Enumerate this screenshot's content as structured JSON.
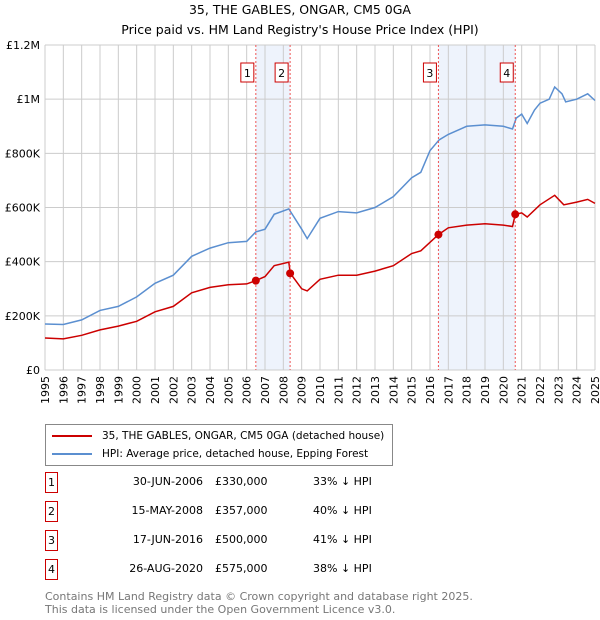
{
  "chart_data": {
    "type": "line",
    "title": "35, THE GABLES, ONGAR, CM5 0GA",
    "subtitle": "Price paid vs. HM Land Registry's House Price Index (HPI)",
    "xlim": [
      1995,
      2025
    ],
    "ylim": [
      0,
      1200000
    ],
    "x_ticks": [
      "1995",
      "1996",
      "1997",
      "1998",
      "1999",
      "2000",
      "2001",
      "2002",
      "2003",
      "2004",
      "2005",
      "2006",
      "2007",
      "2008",
      "2009",
      "2010",
      "2011",
      "2012",
      "2013",
      "2014",
      "2015",
      "2016",
      "2017",
      "2018",
      "2019",
      "2020",
      "2021",
      "2022",
      "2023",
      "2024",
      "2025"
    ],
    "y_ticks": [
      {
        "v": 0,
        "label": "£0"
      },
      {
        "v": 200000,
        "label": "£200K"
      },
      {
        "v": 400000,
        "label": "£400K"
      },
      {
        "v": 600000,
        "label": "£600K"
      },
      {
        "v": 800000,
        "label": "£800K"
      },
      {
        "v": 1000000,
        "label": "£1M"
      },
      {
        "v": 1200000,
        "label": "£1.2M"
      }
    ],
    "grid": true,
    "series": [
      {
        "name": "35, THE GABLES, ONGAR, CM5 0GA (detached house)",
        "color": "#cc0000",
        "x": [
          1995,
          1996,
          1997,
          1998,
          1999,
          2000,
          2001,
          2002,
          2003,
          2004,
          2005,
          2006,
          2006.5,
          2007,
          2007.5,
          2008.3,
          2008.38,
          2009,
          2009.3,
          2010,
          2011,
          2012,
          2013,
          2014,
          2015,
          2015.5,
          2016.46,
          2017,
          2018,
          2019,
          2020,
          2020.5,
          2020.65,
          2021,
          2021.3,
          2022,
          2022.8,
          2023.3,
          2024,
          2024.6,
          2025
        ],
        "y": [
          118000,
          115000,
          128000,
          148000,
          162000,
          180000,
          215000,
          235000,
          285000,
          305000,
          315000,
          318000,
          330000,
          345000,
          385000,
          398000,
          357000,
          300000,
          292000,
          335000,
          350000,
          350000,
          365000,
          385000,
          430000,
          440000,
          500000,
          525000,
          535000,
          540000,
          535000,
          530000,
          575000,
          580000,
          565000,
          610000,
          645000,
          610000,
          620000,
          630000,
          615000
        ]
      },
      {
        "name": "HPI: Average price, detached house, Epping Forest",
        "color": "#5b8fd0",
        "x": [
          1995,
          1996,
          1997,
          1998,
          1999,
          2000,
          2001,
          2002,
          2003,
          2004,
          2005,
          2006,
          2006.5,
          2007,
          2007.5,
          2008.3,
          2009,
          2009.3,
          2010,
          2011,
          2012,
          2013,
          2014,
          2015,
          2015.5,
          2016,
          2016.5,
          2017,
          2018,
          2019,
          2020,
          2020.5,
          2020.7,
          2021,
          2021.3,
          2021.7,
          2022,
          2022.5,
          2022.8,
          2023.2,
          2023.4,
          2024,
          2024.6,
          2025
        ],
        "y": [
          170000,
          168000,
          185000,
          220000,
          235000,
          270000,
          320000,
          350000,
          420000,
          450000,
          470000,
          475000,
          510000,
          520000,
          575000,
          595000,
          520000,
          485000,
          560000,
          585000,
          580000,
          600000,
          640000,
          710000,
          730000,
          810000,
          850000,
          870000,
          900000,
          905000,
          900000,
          890000,
          930000,
          945000,
          910000,
          960000,
          985000,
          1000000,
          1045000,
          1020000,
          990000,
          1000000,
          1020000,
          995000
        ]
      }
    ],
    "sales": [
      {
        "n": "1",
        "x": 2006.5,
        "price": 330000,
        "date": "30-JUN-2006",
        "price_label": "£330,000",
        "delta": "33% ↓ HPI"
      },
      {
        "n": "2",
        "x": 2008.37,
        "price": 357000,
        "date": "15-MAY-2008",
        "price_label": "£357,000",
        "delta": "40% ↓ HPI"
      },
      {
        "n": "3",
        "x": 2016.46,
        "price": 500000,
        "date": "17-JUN-2016",
        "price_label": "£500,000",
        "delta": "41% ↓ HPI"
      },
      {
        "n": "4",
        "x": 2020.65,
        "price": 575000,
        "date": "26-AUG-2020",
        "price_label": "£575,000",
        "delta": "38% ↓ HPI"
      }
    ],
    "shaded": [
      [
        2006.5,
        2008.37
      ],
      [
        2016.46,
        2020.65
      ]
    ],
    "legend": "below"
  },
  "footer": {
    "line1": "Contains HM Land Registry data © Crown copyright and database right 2025.",
    "line2": "This data is licensed under the Open Government Licence v3.0."
  }
}
